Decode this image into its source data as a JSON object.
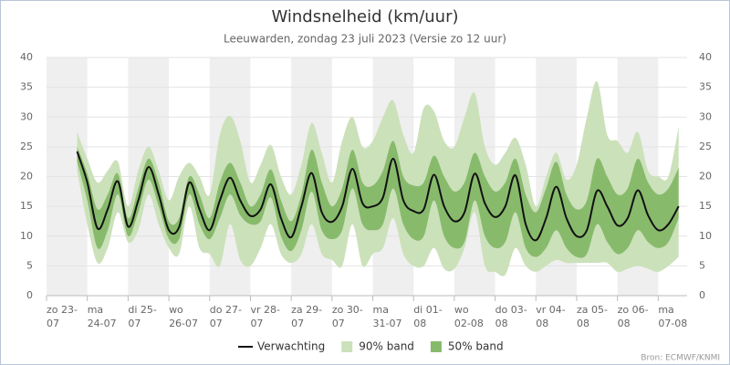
{
  "chart_data": {
    "type": "band_line",
    "title": "Windsnelheid (km/uur)",
    "subtitle": "Leeuwarden, zondag 23 juli 2023 (Versie zo 12 uur)",
    "source": "Bron: ECMWF/KNMI",
    "xlim": [
      0,
      377
    ],
    "xticks": [
      {
        "value": 0,
        "label": "zo 23-07"
      },
      {
        "value": 24,
        "label": "ma 24-07"
      },
      {
        "value": 48,
        "label": "di 25-07"
      },
      {
        "value": 72,
        "label": "wo 26-07"
      },
      {
        "value": 96,
        "label": "do 27-07"
      },
      {
        "value": 120,
        "label": "vr 28-07"
      },
      {
        "value": 144,
        "label": "za 29-07"
      },
      {
        "value": 168,
        "label": "zo 30-07"
      },
      {
        "value": 192,
        "label": "ma 31-07"
      },
      {
        "value": 216,
        "label": "di 01-08"
      },
      {
        "value": 240,
        "label": "wo 02-08"
      },
      {
        "value": 264,
        "label": "do 03-08"
      },
      {
        "value": 288,
        "label": "vr 04-08"
      },
      {
        "value": 312,
        "label": "za 05-08"
      },
      {
        "value": 336,
        "label": "zo 06-08"
      },
      {
        "value": 360,
        "label": "ma 07-08"
      }
    ],
    "ylim": [
      0,
      40
    ],
    "yticks": [
      0,
      5,
      10,
      15,
      20,
      25,
      30,
      35,
      40
    ],
    "grid": true,
    "day_shading": true,
    "legend": "bottom",
    "x": [
      18,
      24,
      30,
      36,
      42,
      48,
      54,
      60,
      66,
      72,
      78,
      84,
      90,
      96,
      102,
      108,
      114,
      120,
      126,
      132,
      138,
      144,
      150,
      156,
      162,
      168,
      174,
      180,
      186,
      192,
      198,
      204,
      210,
      216,
      222,
      228,
      234,
      240,
      246,
      252,
      258,
      264,
      270,
      276,
      282,
      288,
      294,
      300,
      306,
      312,
      318,
      324,
      330,
      336,
      342,
      348,
      354,
      360,
      366,
      372
    ],
    "series": [
      {
        "name": "Verwachting",
        "kind": "line",
        "color": "#111111",
        "values": [
          24.2,
          19,
          11.3,
          14.5,
          19.2,
          11.6,
          16,
          21.6,
          17,
          11,
          11.5,
          19,
          14.5,
          11,
          16,
          19.8,
          16,
          13.4,
          14.5,
          18.7,
          13,
          9.8,
          15,
          20.6,
          14,
          12.4,
          15,
          21.3,
          15.5,
          15,
          16.5,
          23,
          16,
          14.2,
          14.5,
          20.3,
          15,
          12.5,
          14,
          20.5,
          15.5,
          13.2,
          15,
          20.2,
          12,
          9.3,
          13,
          18.3,
          13,
          10,
          11,
          17.6,
          15,
          11.8,
          13,
          17.7,
          13.5,
          11,
          12,
          15
        ]
      },
      {
        "name": "90% band",
        "kind": "band",
        "color": "#cbe1ba",
        "low": [
          21,
          12,
          5.5,
          8,
          14,
          9,
          11,
          17,
          12,
          8,
          7,
          15,
          8,
          7,
          5,
          12,
          6,
          5,
          8,
          12,
          7,
          5.5,
          7,
          12,
          7,
          6,
          5,
          12,
          5,
          7,
          8,
          13,
          7,
          5,
          5,
          8,
          4.5,
          4.5,
          8,
          14,
          5,
          4,
          3.5,
          8,
          5,
          4,
          5,
          6,
          5.5,
          5.5,
          5.5,
          5.5,
          5.5,
          4,
          4.5,
          5,
          4.5,
          4,
          5,
          6.5
        ],
        "high": [
          27.5,
          23,
          19,
          21,
          22.5,
          15,
          21,
          25,
          21,
          16,
          20,
          22.3,
          20,
          17,
          27,
          30.2,
          26,
          19,
          22,
          25.3,
          20,
          17,
          22,
          29,
          24,
          19,
          26,
          30,
          25,
          26,
          30,
          32.8,
          27,
          24,
          31.5,
          31,
          26,
          25,
          30,
          34,
          25,
          22,
          24,
          26.5,
          22,
          15,
          20,
          24,
          19.5,
          22,
          30,
          36,
          27,
          26,
          24,
          27.5,
          21,
          20,
          20,
          28.3
        ]
      },
      {
        "name": "50% band",
        "kind": "band",
        "color": "#88ba6c",
        "low": [
          22.5,
          16,
          8,
          11,
          17,
          10,
          14,
          19.5,
          15,
          9.5,
          9.5,
          17,
          12,
          9.5,
          13,
          17,
          13.5,
          12,
          12.5,
          16.5,
          10,
          7.5,
          11,
          17.5,
          11,
          9.5,
          11,
          18,
          12,
          11,
          12,
          18,
          12,
          9.5,
          10,
          16,
          10,
          8,
          9,
          16,
          10,
          8,
          9,
          14,
          8,
          6.5,
          8,
          11,
          8,
          6.5,
          7,
          12,
          9,
          7,
          8,
          11,
          9,
          8,
          9,
          13
        ],
        "high": [
          25,
          20.5,
          14.5,
          17,
          20.5,
          13,
          18,
          23,
          19,
          12.5,
          13,
          20,
          17,
          13,
          19,
          22.3,
          19,
          15,
          17,
          21.2,
          16,
          12.5,
          17,
          24.5,
          19,
          15,
          18,
          24.5,
          19,
          18.5,
          21,
          26,
          20,
          18.5,
          19,
          23.5,
          20,
          17.5,
          19,
          24,
          20,
          17.5,
          19,
          23,
          17,
          14,
          18,
          22.5,
          17,
          14.5,
          16,
          23,
          20,
          17,
          18,
          23,
          19,
          17,
          18,
          21.5
        ]
      }
    ]
  }
}
